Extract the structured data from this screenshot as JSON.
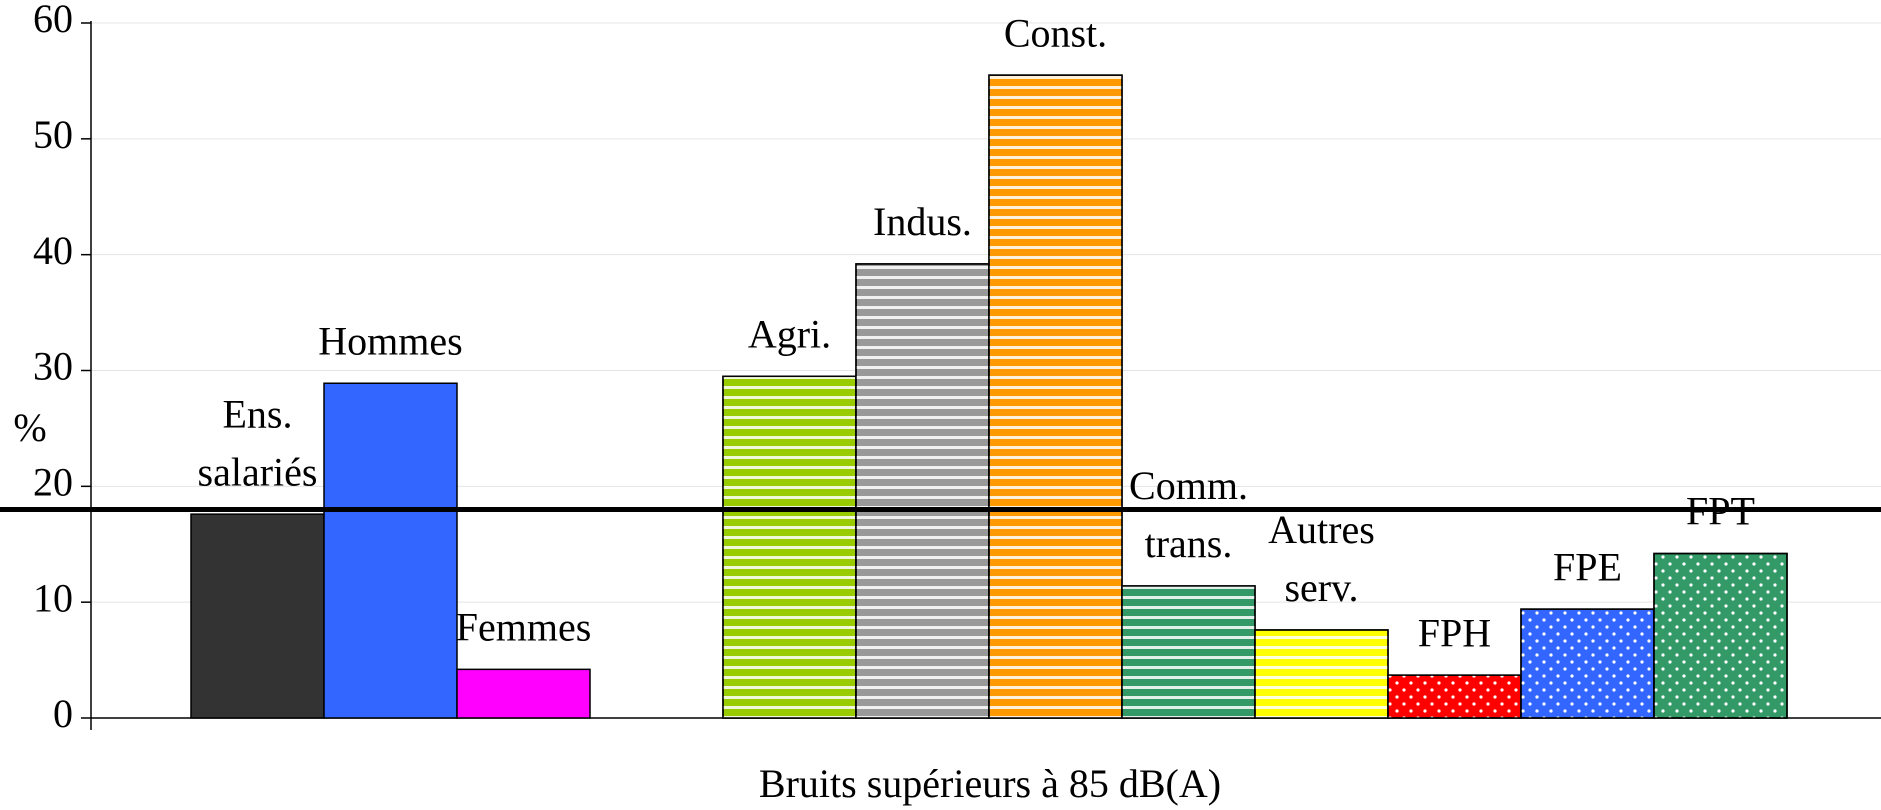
{
  "chart_data": {
    "type": "bar",
    "y_label": "%",
    "x_label": "Bruits supérieurs à 85 dB(A)",
    "categories": [
      [
        "Ens.",
        "salariés"
      ],
      [
        "Hommes"
      ],
      [
        "Femmes"
      ],
      null,
      [
        "Agri."
      ],
      [
        "Indus."
      ],
      [
        "Const."
      ],
      [
        "Comm.",
        "trans."
      ],
      [
        "Autres",
        "serv."
      ],
      [
        "FPH"
      ],
      [
        "FPE"
      ],
      [
        "FPT"
      ]
    ],
    "values": [
      17.6,
      28.9,
      4.2,
      null,
      29.5,
      39.2,
      55.5,
      11.4,
      7.6,
      3.7,
      9.4,
      14.2
    ],
    "colors": [
      "#333333",
      "#3366ff",
      "#ff00ff",
      null,
      "#99cc00",
      "#999999",
      "#ff9900",
      "#339966",
      "#ffff00",
      "#ff0000",
      "#3366ff",
      "#339966"
    ],
    "patterns": [
      "solid",
      "solid",
      "solid",
      null,
      "stripes",
      "stripes",
      "stripes",
      "stripes",
      "stripes",
      "dots",
      "dots",
      "dots"
    ],
    "reference_line": 18,
    "ylim": [
      0,
      60
    ],
    "yticks": [
      0,
      10,
      20,
      30,
      40,
      50,
      60
    ],
    "grid": true
  }
}
